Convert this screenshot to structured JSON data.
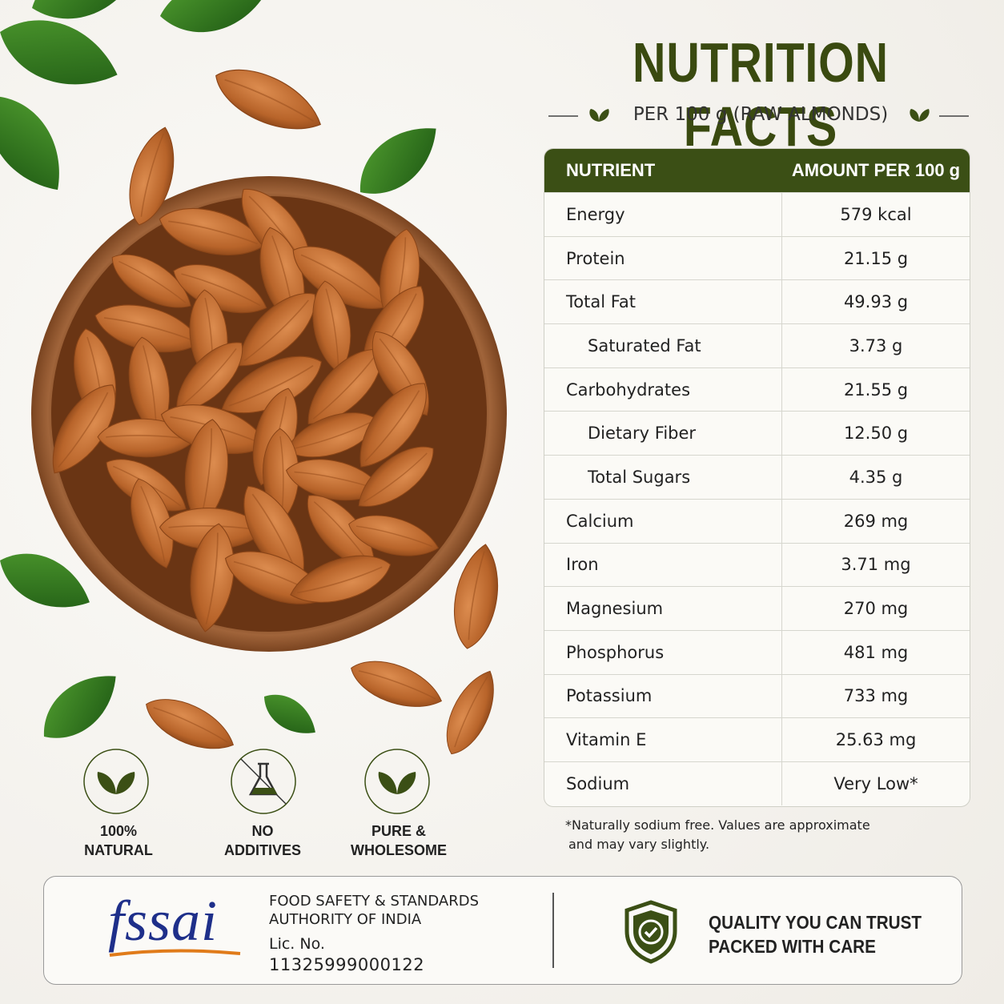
{
  "header": {
    "title": "NUTRITION FACTS",
    "subtitle": "PER 100 g (RAW ALMONDS)"
  },
  "table": {
    "columns": [
      "NUTRIENT",
      "AMOUNT PER 100 g"
    ],
    "rows": [
      {
        "nutrient": "Energy",
        "amount": "579 kcal",
        "level": 0
      },
      {
        "nutrient": "Protein",
        "amount": "21.15 g",
        "level": 0
      },
      {
        "nutrient": "Total Fat",
        "amount": "49.93 g",
        "level": 0
      },
      {
        "nutrient": "Saturated Fat",
        "amount": "3.73 g",
        "level": 1
      },
      {
        "nutrient": "Carbohydrates",
        "amount": "21.55 g",
        "level": 0
      },
      {
        "nutrient": "Dietary Fiber",
        "amount": "12.50 g",
        "level": 1
      },
      {
        "nutrient": "Total Sugars",
        "amount": "4.35 g",
        "level": 1
      },
      {
        "nutrient": "Calcium",
        "amount": "269 mg",
        "level": 0
      },
      {
        "nutrient": "Iron",
        "amount": "3.71 mg",
        "level": 0
      },
      {
        "nutrient": "Magnesium",
        "amount": "270 mg",
        "level": 0
      },
      {
        "nutrient": "Phosphorus",
        "amount": "481 mg",
        "level": 0
      },
      {
        "nutrient": "Potassium",
        "amount": "733 mg",
        "level": 0
      },
      {
        "nutrient": "Vitamin E",
        "amount": "25.63 mg",
        "level": 0
      },
      {
        "nutrient": "Sodium",
        "amount": "Very Low*",
        "level": 0
      }
    ]
  },
  "footnote": [
    "*Naturally sodium free. Values are approximate",
    "and may vary slightly."
  ],
  "badges": [
    {
      "lines": [
        "100%",
        "NATURAL"
      ]
    },
    {
      "lines": [
        "NO",
        "ADDITIVES"
      ]
    },
    {
      "lines": [
        "PURE &",
        "WHOLESOME"
      ]
    }
  ],
  "certification": {
    "logo": "fssai",
    "authority": [
      "FOOD SAFETY & STANDARDS",
      "AUTHORITY OF INDIA"
    ],
    "license_label": "Lic. No.",
    "license_number": "11325999000122"
  },
  "promise": [
    "QUALITY YOU CAN TRUST",
    "PACKED WITH CARE"
  ]
}
